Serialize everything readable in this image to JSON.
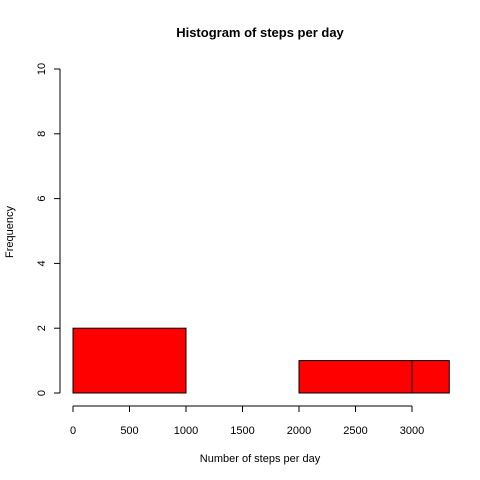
{
  "chart_data": {
    "type": "bar",
    "title": "Histogram of steps per day",
    "xlabel": "Number of steps per day",
    "ylabel": "Frequency",
    "bins": [
      {
        "start": 0,
        "end": 1000,
        "count": 2
      },
      {
        "start": 1000,
        "end": 2000,
        "count": 0
      },
      {
        "start": 2000,
        "end": 3000,
        "count": 1
      },
      {
        "start": 3000,
        "end": 3330,
        "count": 1
      }
    ],
    "xlim": [
      0,
      3330
    ],
    "ylim": [
      0,
      10
    ],
    "x_ticks": [
      "0",
      "500",
      "1000",
      "1500",
      "2000",
      "2500",
      "3000"
    ],
    "y_ticks": [
      "0",
      "2",
      "4",
      "6",
      "8",
      "10"
    ],
    "bar_color": "#ff0000",
    "grid": false
  }
}
